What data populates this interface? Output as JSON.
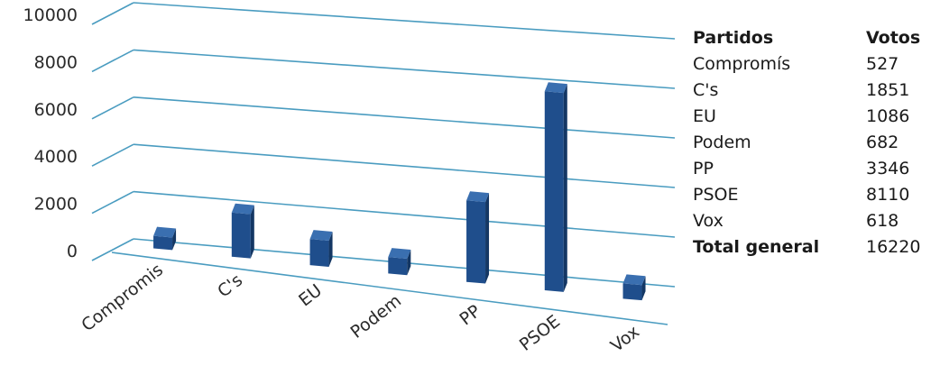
{
  "chart_data": {
    "type": "bar",
    "title": "",
    "xlabel": "",
    "ylabel": "",
    "ylim": [
      0,
      10000
    ],
    "yticks": [
      0,
      2000,
      4000,
      6000,
      8000,
      10000
    ],
    "yticklabels": [
      "0",
      "2000",
      "4000",
      "6000",
      "8000",
      "10000"
    ],
    "categories": [
      "Compromis",
      "C's",
      "EU",
      "Podem",
      "PP",
      "PSOE",
      "Vox"
    ],
    "values": [
      527,
      1851,
      1086,
      682,
      3346,
      8110,
      618
    ],
    "bar_color": "#1f4e8c",
    "grid_color": "#4a9cc0",
    "grid": true,
    "style": "3d-perspective"
  },
  "table": {
    "header": {
      "party": "Partidos",
      "votes": "Votos"
    },
    "rows": [
      {
        "party": "Compromís",
        "votes": "527"
      },
      {
        "party": "C's",
        "votes": "1851"
      },
      {
        "party": "EU",
        "votes": "1086"
      },
      {
        "party": "Podem",
        "votes": "682"
      },
      {
        "party": "PP",
        "votes": "3346"
      },
      {
        "party": "PSOE",
        "votes": "8110"
      },
      {
        "party": "Vox",
        "votes": "618"
      }
    ],
    "total": {
      "label": "Total general",
      "votes": "16220"
    }
  }
}
